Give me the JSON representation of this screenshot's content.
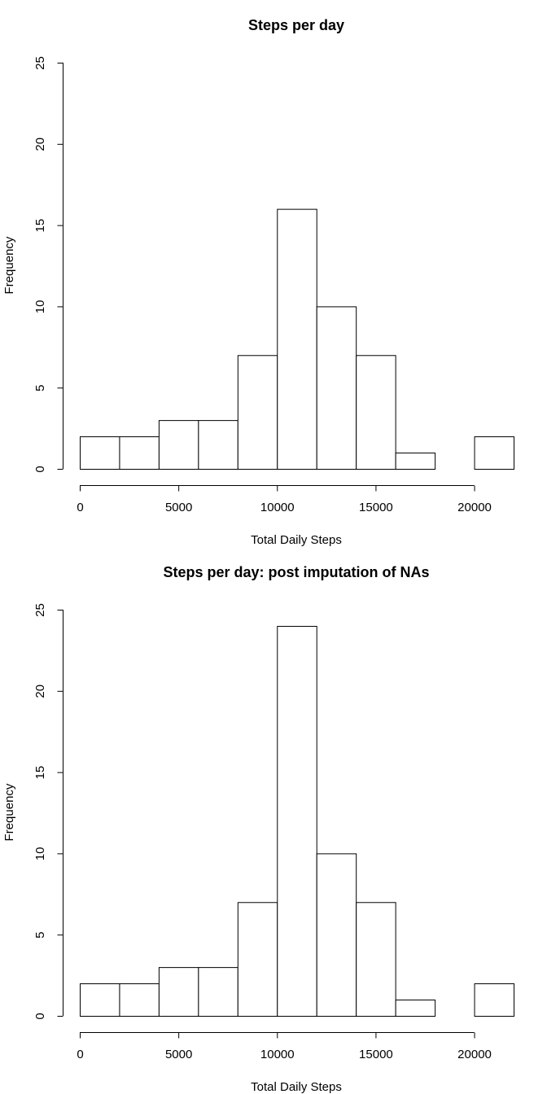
{
  "chart_data": [
    {
      "type": "bar",
      "title": "Steps per day",
      "xlabel": "Total Daily Steps",
      "ylabel": "Frequency",
      "bin_edges": [
        0,
        2000,
        4000,
        6000,
        8000,
        10000,
        12000,
        14000,
        16000,
        18000,
        20000,
        22000
      ],
      "values": [
        2,
        2,
        3,
        3,
        7,
        16,
        10,
        7,
        1,
        0,
        2
      ],
      "xlim": [
        0,
        22000
      ],
      "ylim": [
        0,
        25
      ],
      "xticks": [
        0,
        5000,
        10000,
        15000,
        20000
      ],
      "yticks": [
        0,
        5,
        10,
        15,
        20,
        25
      ],
      "grid": false
    },
    {
      "type": "bar",
      "title": "Steps per day: post imputation of NAs",
      "xlabel": "Total Daily Steps",
      "ylabel": "Frequency",
      "bin_edges": [
        0,
        2000,
        4000,
        6000,
        8000,
        10000,
        12000,
        14000,
        16000,
        18000,
        20000,
        22000
      ],
      "values": [
        2,
        2,
        3,
        3,
        7,
        24,
        10,
        7,
        1,
        0,
        2
      ],
      "xlim": [
        0,
        22000
      ],
      "ylim": [
        0,
        25
      ],
      "xticks": [
        0,
        5000,
        10000,
        15000,
        20000
      ],
      "yticks": [
        0,
        5,
        10,
        15,
        20,
        25
      ],
      "grid": false
    }
  ]
}
